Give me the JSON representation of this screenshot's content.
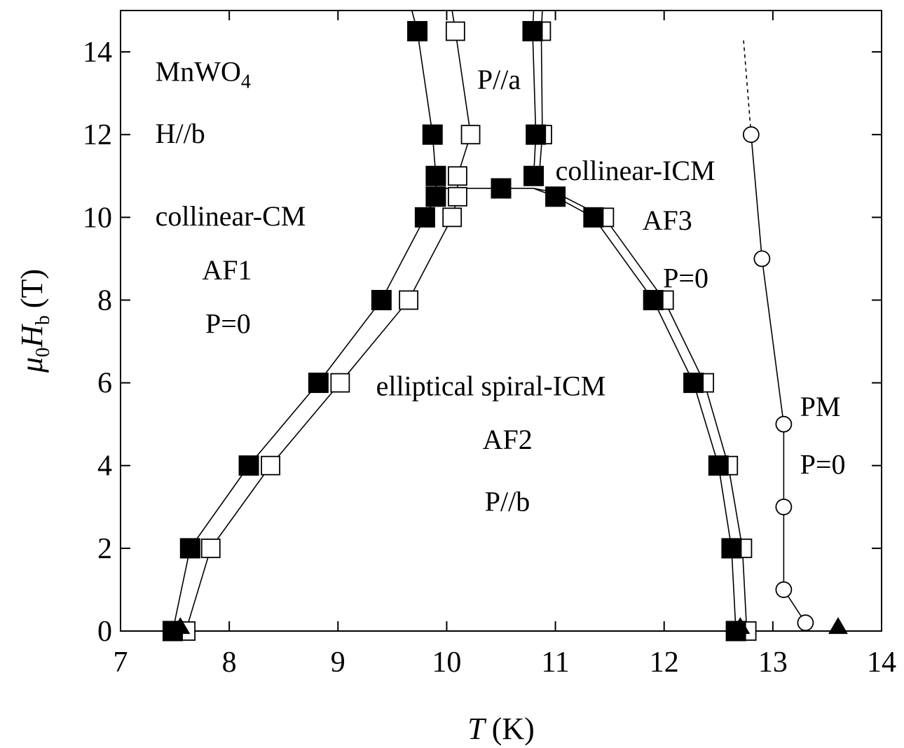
{
  "chart_data": {
    "type": "scatter",
    "title": "",
    "xlabel": {
      "symbol": "T",
      "unit": "(K)"
    },
    "ylabel": {
      "symbol": "μ",
      "sub0": "0",
      "H": "H",
      "subb": "b",
      "unit": "(T)"
    },
    "xlim": [
      7,
      14
    ],
    "ylim": [
      0,
      15
    ],
    "xticks": [
      7,
      8,
      9,
      10,
      11,
      12,
      13,
      14
    ],
    "yticks": [
      0,
      2,
      4,
      6,
      8,
      10,
      12,
      14
    ],
    "grid": false,
    "series": [
      {
        "marker": "filled-square",
        "points": [
          [
            7.48,
            0
          ],
          [
            7.64,
            2
          ],
          [
            8.18,
            4
          ],
          [
            8.82,
            6
          ],
          [
            9.4,
            8
          ],
          [
            9.8,
            10
          ],
          [
            9.9,
            10.5
          ],
          [
            9.9,
            11
          ],
          [
            9.87,
            12
          ],
          [
            9.73,
            14.5
          ]
        ]
      },
      {
        "marker": "open-square",
        "points": [
          [
            7.6,
            0
          ],
          [
            7.83,
            2
          ],
          [
            8.38,
            4
          ],
          [
            9.02,
            6
          ],
          [
            9.65,
            8
          ],
          [
            10.05,
            10
          ],
          [
            10.1,
            10.5
          ],
          [
            10.1,
            11
          ],
          [
            10.22,
            12
          ],
          [
            10.08,
            14.5
          ]
        ]
      },
      {
        "marker": "filled-square",
        "points": [
          [
            10.5,
            10.7
          ],
          [
            11.0,
            10.5
          ],
          [
            11.35,
            10
          ],
          [
            11.9,
            8
          ],
          [
            12.27,
            6
          ],
          [
            12.5,
            4
          ],
          [
            12.62,
            2
          ],
          [
            12.66,
            0
          ]
        ]
      },
      {
        "marker": "open-square",
        "points": [
          [
            11.45,
            10
          ],
          [
            12.0,
            8
          ],
          [
            12.37,
            6
          ],
          [
            12.59,
            4
          ],
          [
            12.72,
            2
          ],
          [
            12.76,
            0
          ]
        ]
      },
      {
        "marker": "filled-square",
        "points": [
          [
            10.8,
            11
          ],
          [
            10.82,
            12
          ],
          [
            10.79,
            14.5
          ]
        ]
      },
      {
        "marker": "open-square",
        "points": [
          [
            10.88,
            12
          ],
          [
            10.87,
            14.5
          ]
        ]
      },
      {
        "marker": "open-circle",
        "points": [
          [
            12.8,
            12
          ],
          [
            12.9,
            9
          ],
          [
            13.1,
            5
          ],
          [
            13.1,
            3
          ],
          [
            13.1,
            1
          ],
          [
            13.3,
            0.2
          ]
        ]
      },
      {
        "marker": "filled-triangle",
        "points": [
          [
            7.55,
            0.1
          ],
          [
            12.7,
            0.1
          ],
          [
            13.6,
            0.1
          ]
        ]
      }
    ],
    "phase_lines": [
      [
        [
          7.48,
          0
        ],
        [
          7.64,
          2
        ],
        [
          8.18,
          4
        ],
        [
          8.82,
          6
        ],
        [
          9.4,
          8
        ],
        [
          9.8,
          10
        ],
        [
          9.9,
          10.5
        ],
        [
          9.9,
          11
        ],
        [
          9.87,
          12
        ],
        [
          9.73,
          14.5
        ],
        [
          9.68,
          15
        ]
      ],
      [
        [
          7.6,
          0
        ],
        [
          7.83,
          2
        ],
        [
          8.38,
          4
        ],
        [
          9.02,
          6
        ],
        [
          9.65,
          8
        ],
        [
          10.05,
          10
        ],
        [
          10.1,
          10.5
        ],
        [
          10.1,
          11
        ],
        [
          10.22,
          12
        ],
        [
          10.08,
          14.5
        ],
        [
          10.05,
          15
        ]
      ],
      [
        [
          9.9,
          10.7
        ],
        [
          10.5,
          10.7
        ],
        [
          10.8,
          10.7
        ],
        [
          11.0,
          10.5
        ],
        [
          11.35,
          10
        ],
        [
          11.9,
          8
        ],
        [
          12.27,
          6
        ],
        [
          12.5,
          4
        ],
        [
          12.62,
          2
        ],
        [
          12.66,
          0
        ]
      ],
      [
        [
          10.8,
          10.7
        ],
        [
          11.0,
          10.6
        ],
        [
          11.45,
          10
        ],
        [
          12.0,
          8
        ],
        [
          12.37,
          6
        ],
        [
          12.59,
          4
        ],
        [
          12.72,
          2
        ],
        [
          12.76,
          0
        ]
      ],
      [
        [
          10.8,
          11
        ],
        [
          10.82,
          12
        ],
        [
          10.79,
          14.5
        ],
        [
          10.8,
          15
        ]
      ],
      [
        [
          10.85,
          11
        ],
        [
          10.88,
          12
        ],
        [
          10.87,
          14.5
        ],
        [
          10.88,
          15
        ]
      ],
      [
        [
          12.8,
          12
        ],
        [
          12.9,
          9
        ],
        [
          13.1,
          5
        ],
        [
          13.1,
          1
        ],
        [
          13.3,
          0.2
        ]
      ]
    ],
    "dashed_lines": [
      [
        [
          12.8,
          12
        ],
        [
          12.73,
          14.3
        ]
      ]
    ],
    "annotations": [
      {
        "text": "MnWO",
        "sub": "4",
        "x": 7.32,
        "y": 13.3
      },
      {
        "text": "H//b",
        "x": 7.32,
        "y": 11.8
      },
      {
        "text": "collinear-CM",
        "x": 7.32,
        "y": 9.8
      },
      {
        "text": "AF1",
        "x": 7.75,
        "y": 8.5
      },
      {
        "text": "P=0",
        "x": 7.78,
        "y": 7.2
      },
      {
        "text": "P//a",
        "x": 10.28,
        "y": 13.1
      },
      {
        "text": "collinear-ICM",
        "x": 11.0,
        "y": 10.9
      },
      {
        "text": "AF3",
        "x": 11.8,
        "y": 9.7
      },
      {
        "text": "P=0",
        "x": 11.99,
        "y": 8.3
      },
      {
        "text": "elliptical spiral-ICM",
        "x": 9.35,
        "y": 5.7
      },
      {
        "text": "AF2",
        "x": 10.33,
        "y": 4.4
      },
      {
        "text": "P//b",
        "x": 10.35,
        "y": 2.9
      },
      {
        "text": "PM",
        "x": 13.25,
        "y": 5.2
      },
      {
        "text": "P=0",
        "x": 13.25,
        "y": 3.8
      }
    ]
  }
}
